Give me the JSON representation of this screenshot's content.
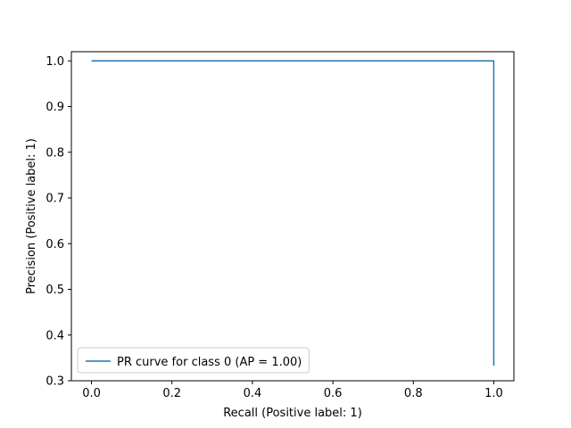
{
  "chart_data": {
    "type": "line",
    "title": "",
    "xlabel": "Recall (Positive label: 1)",
    "ylabel": "Precision (Positive label: 1)",
    "xlim": [
      -0.05,
      1.05
    ],
    "ylim": [
      0.3,
      1.02
    ],
    "x_ticks": [
      0.0,
      0.2,
      0.4,
      0.6,
      0.8,
      1.0
    ],
    "y_ticks": [
      0.3,
      0.4,
      0.5,
      0.6,
      0.7,
      0.8,
      0.9,
      1.0
    ],
    "x_tick_labels": [
      "0.0",
      "0.2",
      "0.4",
      "0.6",
      "0.8",
      "1.0"
    ],
    "y_tick_labels": [
      "0.3",
      "0.4",
      "0.5",
      "0.6",
      "0.7",
      "0.8",
      "0.9",
      "1.0"
    ],
    "grid": false,
    "legend_position": "lower-left",
    "series": [
      {
        "name": "PR curve for class 0 (AP = 1.00)",
        "color": "#1f77b4",
        "drawstyle": "steps-post",
        "x": [
          0.0,
          1.0,
          1.0
        ],
        "y": [
          1.0,
          1.0,
          0.333
        ]
      }
    ]
  }
}
